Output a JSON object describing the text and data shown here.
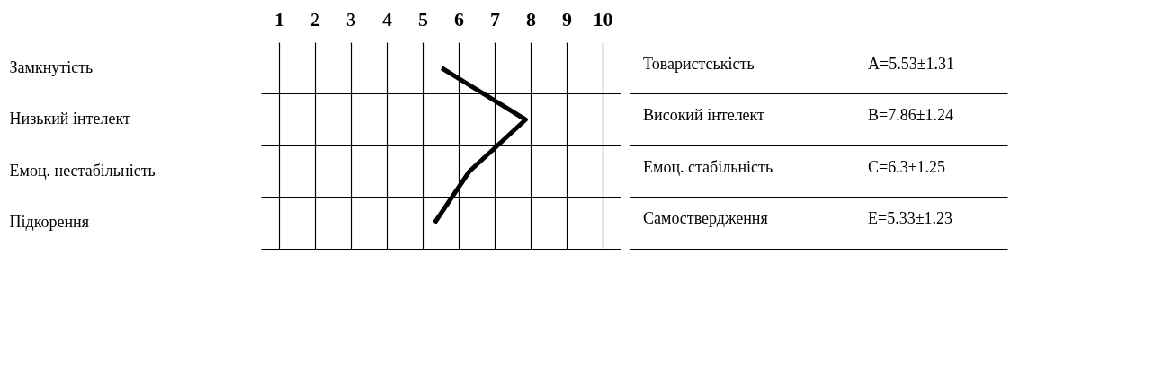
{
  "chart_data": {
    "type": "line",
    "orientation": "horizontal",
    "categories": [
      "Замкнутість",
      "Низький інтелект",
      "Емоц. нестабільність",
      "Підкорення"
    ],
    "y2_categories": [
      "Товаристськість",
      "Високий інтелект",
      "Емоц. стабільність",
      "Самоствердження"
    ],
    "values": [
      5.53,
      7.86,
      6.3,
      5.33
    ],
    "annotations": [
      "A=5.53±1.31",
      "B=7.86±1.24",
      "C=6.3±1.25",
      "E=5.33±1.23"
    ],
    "color": "#000000",
    "xlim": [
      0.5,
      10.5
    ],
    "xticks": [
      1,
      2,
      3,
      4,
      5,
      6,
      7,
      8,
      9,
      10
    ],
    "grid": true,
    "marker": "none",
    "line_style": "solid"
  }
}
